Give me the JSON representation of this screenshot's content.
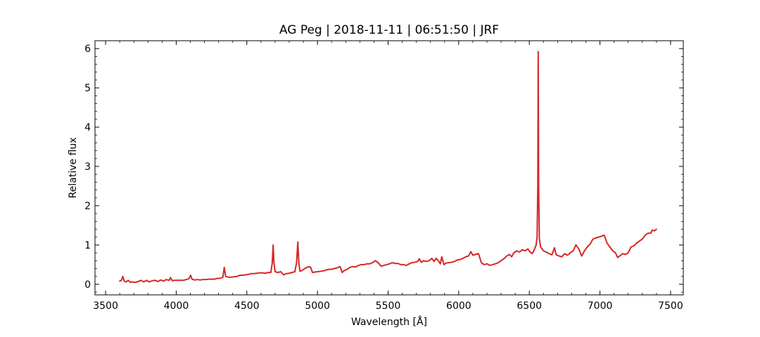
{
  "chart_data": {
    "type": "line",
    "title": "AG Peg | 2018-11-11 | 06:51:50 | JRF",
    "xlabel": "Wavelength [Å]",
    "ylabel": "Relative flux",
    "xlim": [
      3425,
      7590
    ],
    "ylim": [
      -0.27,
      6.2
    ],
    "x_ticks": [
      3500,
      4000,
      4500,
      5000,
      5500,
      6000,
      6500,
      7000,
      7500
    ],
    "y_ticks": [
      0,
      1,
      2,
      3,
      4,
      5,
      6
    ],
    "grid": false,
    "series": [
      {
        "color": "#d62728",
        "points": [
          [
            3600,
            0.08
          ],
          [
            3612,
            0.1
          ],
          [
            3622,
            0.2
          ],
          [
            3632,
            0.08
          ],
          [
            3645,
            0.06
          ],
          [
            3660,
            0.1
          ],
          [
            3675,
            0.05
          ],
          [
            3690,
            0.06
          ],
          [
            3710,
            0.05
          ],
          [
            3730,
            0.07
          ],
          [
            3750,
            0.1
          ],
          [
            3770,
            0.06
          ],
          [
            3790,
            0.1
          ],
          [
            3810,
            0.06
          ],
          [
            3830,
            0.09
          ],
          [
            3850,
            0.1
          ],
          [
            3870,
            0.07
          ],
          [
            3890,
            0.11
          ],
          [
            3910,
            0.08
          ],
          [
            3930,
            0.12
          ],
          [
            3950,
            0.1
          ],
          [
            3960,
            0.17
          ],
          [
            3972,
            0.09
          ],
          [
            3990,
            0.1
          ],
          [
            4010,
            0.1
          ],
          [
            4030,
            0.1
          ],
          [
            4050,
            0.1
          ],
          [
            4070,
            0.12
          ],
          [
            4090,
            0.14
          ],
          [
            4102,
            0.23
          ],
          [
            4112,
            0.13
          ],
          [
            4130,
            0.11
          ],
          [
            4150,
            0.12
          ],
          [
            4170,
            0.11
          ],
          [
            4190,
            0.12
          ],
          [
            4210,
            0.12
          ],
          [
            4230,
            0.13
          ],
          [
            4250,
            0.13
          ],
          [
            4270,
            0.13
          ],
          [
            4290,
            0.15
          ],
          [
            4310,
            0.15
          ],
          [
            4330,
            0.18
          ],
          [
            4340,
            0.43
          ],
          [
            4350,
            0.2
          ],
          [
            4370,
            0.18
          ],
          [
            4390,
            0.18
          ],
          [
            4410,
            0.19
          ],
          [
            4430,
            0.2
          ],
          [
            4450,
            0.23
          ],
          [
            4470,
            0.23
          ],
          [
            4490,
            0.24
          ],
          [
            4510,
            0.25
          ],
          [
            4530,
            0.27
          ],
          [
            4550,
            0.27
          ],
          [
            4570,
            0.28
          ],
          [
            4590,
            0.29
          ],
          [
            4610,
            0.29
          ],
          [
            4630,
            0.28
          ],
          [
            4650,
            0.3
          ],
          [
            4670,
            0.3
          ],
          [
            4680,
            0.55
          ],
          [
            4686,
            1.0
          ],
          [
            4692,
            0.55
          ],
          [
            4700,
            0.32
          ],
          [
            4720,
            0.3
          ],
          [
            4740,
            0.32
          ],
          [
            4760,
            0.24
          ],
          [
            4780,
            0.27
          ],
          [
            4800,
            0.28
          ],
          [
            4820,
            0.3
          ],
          [
            4840,
            0.32
          ],
          [
            4852,
            0.55
          ],
          [
            4861,
            1.08
          ],
          [
            4868,
            0.55
          ],
          [
            4876,
            0.33
          ],
          [
            4890,
            0.35
          ],
          [
            4910,
            0.4
          ],
          [
            4930,
            0.44
          ],
          [
            4950,
            0.44
          ],
          [
            4965,
            0.3
          ],
          [
            4980,
            0.31
          ],
          [
            5000,
            0.32
          ],
          [
            5020,
            0.33
          ],
          [
            5040,
            0.34
          ],
          [
            5060,
            0.36
          ],
          [
            5080,
            0.38
          ],
          [
            5100,
            0.38
          ],
          [
            5120,
            0.4
          ],
          [
            5140,
            0.42
          ],
          [
            5160,
            0.45
          ],
          [
            5175,
            0.3
          ],
          [
            5190,
            0.35
          ],
          [
            5210,
            0.38
          ],
          [
            5230,
            0.43
          ],
          [
            5250,
            0.45
          ],
          [
            5270,
            0.44
          ],
          [
            5290,
            0.48
          ],
          [
            5310,
            0.5
          ],
          [
            5330,
            0.5
          ],
          [
            5350,
            0.52
          ],
          [
            5370,
            0.52
          ],
          [
            5390,
            0.55
          ],
          [
            5410,
            0.6
          ],
          [
            5430,
            0.55
          ],
          [
            5450,
            0.46
          ],
          [
            5470,
            0.48
          ],
          [
            5490,
            0.5
          ],
          [
            5510,
            0.52
          ],
          [
            5530,
            0.55
          ],
          [
            5550,
            0.53
          ],
          [
            5570,
            0.53
          ],
          [
            5590,
            0.5
          ],
          [
            5610,
            0.5
          ],
          [
            5630,
            0.48
          ],
          [
            5650,
            0.52
          ],
          [
            5670,
            0.55
          ],
          [
            5690,
            0.56
          ],
          [
            5710,
            0.58
          ],
          [
            5720,
            0.65
          ],
          [
            5735,
            0.56
          ],
          [
            5750,
            0.6
          ],
          [
            5770,
            0.58
          ],
          [
            5790,
            0.6
          ],
          [
            5810,
            0.66
          ],
          [
            5825,
            0.58
          ],
          [
            5840,
            0.66
          ],
          [
            5855,
            0.6
          ],
          [
            5870,
            0.52
          ],
          [
            5880,
            0.7
          ],
          [
            5895,
            0.5
          ],
          [
            5910,
            0.54
          ],
          [
            5930,
            0.55
          ],
          [
            5950,
            0.56
          ],
          [
            5970,
            0.58
          ],
          [
            5990,
            0.62
          ],
          [
            6010,
            0.63
          ],
          [
            6030,
            0.66
          ],
          [
            6050,
            0.7
          ],
          [
            6070,
            0.72
          ],
          [
            6085,
            0.83
          ],
          [
            6100,
            0.74
          ],
          [
            6120,
            0.76
          ],
          [
            6140,
            0.78
          ],
          [
            6160,
            0.55
          ],
          [
            6180,
            0.5
          ],
          [
            6200,
            0.52
          ],
          [
            6220,
            0.48
          ],
          [
            6240,
            0.5
          ],
          [
            6260,
            0.52
          ],
          [
            6280,
            0.55
          ],
          [
            6300,
            0.6
          ],
          [
            6320,
            0.65
          ],
          [
            6340,
            0.72
          ],
          [
            6360,
            0.76
          ],
          [
            6375,
            0.7
          ],
          [
            6390,
            0.8
          ],
          [
            6410,
            0.85
          ],
          [
            6430,
            0.82
          ],
          [
            6450,
            0.88
          ],
          [
            6470,
            0.85
          ],
          [
            6490,
            0.9
          ],
          [
            6505,
            0.82
          ],
          [
            6520,
            0.78
          ],
          [
            6535,
            0.88
          ],
          [
            6548,
            1.0
          ],
          [
            6555,
            1.2
          ],
          [
            6560,
            2.5
          ],
          [
            6563,
            5.92
          ],
          [
            6566,
            2.5
          ],
          [
            6571,
            1.15
          ],
          [
            6580,
            0.95
          ],
          [
            6600,
            0.85
          ],
          [
            6620,
            0.82
          ],
          [
            6640,
            0.78
          ],
          [
            6660,
            0.75
          ],
          [
            6678,
            0.93
          ],
          [
            6690,
            0.75
          ],
          [
            6710,
            0.72
          ],
          [
            6730,
            0.7
          ],
          [
            6750,
            0.78
          ],
          [
            6770,
            0.74
          ],
          [
            6790,
            0.8
          ],
          [
            6810,
            0.85
          ],
          [
            6830,
            1.0
          ],
          [
            6850,
            0.9
          ],
          [
            6870,
            0.72
          ],
          [
            6890,
            0.85
          ],
          [
            6910,
            0.95
          ],
          [
            6930,
            1.02
          ],
          [
            6950,
            1.15
          ],
          [
            6970,
            1.18
          ],
          [
            6990,
            1.2
          ],
          [
            7010,
            1.22
          ],
          [
            7030,
            1.25
          ],
          [
            7050,
            1.05
          ],
          [
            7070,
            0.95
          ],
          [
            7090,
            0.85
          ],
          [
            7110,
            0.8
          ],
          [
            7125,
            0.68
          ],
          [
            7140,
            0.72
          ],
          [
            7160,
            0.78
          ],
          [
            7180,
            0.76
          ],
          [
            7200,
            0.8
          ],
          [
            7220,
            0.95
          ],
          [
            7240,
            0.98
          ],
          [
            7260,
            1.05
          ],
          [
            7280,
            1.1
          ],
          [
            7300,
            1.15
          ],
          [
            7320,
            1.25
          ],
          [
            7340,
            1.3
          ],
          [
            7360,
            1.3
          ],
          [
            7370,
            1.38
          ],
          [
            7385,
            1.36
          ],
          [
            7400,
            1.4
          ]
        ]
      }
    ]
  }
}
